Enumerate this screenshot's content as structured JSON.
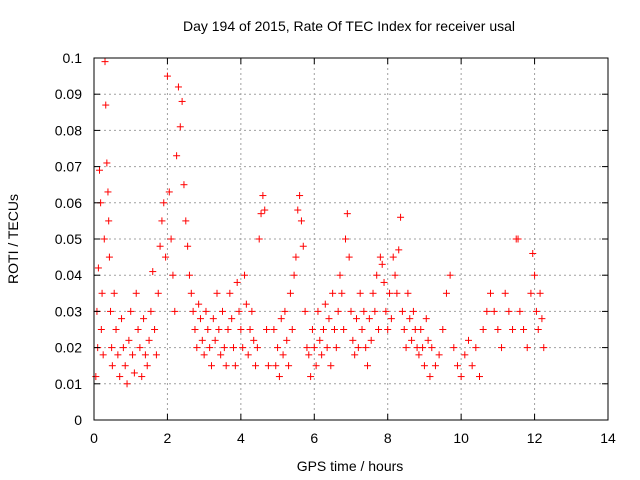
{
  "chart_data": {
    "type": "scatter",
    "title": "Day 194 of 2015, Rate Of TEC Index for receiver usal",
    "xlabel": "GPS time / hours",
    "ylabel": "ROTI / TECUs",
    "xlim": [
      0,
      14
    ],
    "ylim": [
      0,
      0.1
    ],
    "xticks": [
      "0",
      "2",
      "4",
      "6",
      "8",
      "10",
      "12",
      "14"
    ],
    "yticks": [
      "0",
      "0.01",
      "0.02",
      "0.03",
      "0.04",
      "0.05",
      "0.06",
      "0.07",
      "0.08",
      "0.09",
      "0.1"
    ],
    "grid": true,
    "marker": "+",
    "color": "#ff0000",
    "series": [
      {
        "x": [
          0.05,
          0.08,
          0.1,
          0.12,
          0.15,
          0.18,
          0.2,
          0.22,
          0.25,
          0.28,
          0.3,
          0.32,
          0.35,
          0.38,
          0.4,
          0.42,
          0.45,
          0.48,
          0.5,
          0.55,
          0.6,
          0.65,
          0.7,
          0.75,
          0.8,
          0.85,
          0.9,
          0.95,
          1.0,
          1.05,
          1.1,
          1.15,
          1.2,
          1.25,
          1.3,
          1.35,
          1.4,
          1.45,
          1.5,
          1.55,
          1.6,
          1.65,
          1.7,
          1.75,
          1.8,
          1.85,
          1.9,
          1.95,
          2.0,
          2.05,
          2.1,
          2.15,
          2.2,
          2.25,
          2.3,
          2.35,
          2.4,
          2.45,
          2.5,
          2.55,
          2.6,
          2.65,
          2.7,
          2.75,
          2.8,
          2.85,
          2.9,
          2.95,
          3.0,
          3.05,
          3.1,
          3.15,
          3.2,
          3.25,
          3.3,
          3.35,
          3.4,
          3.45,
          3.5,
          3.55,
          3.6,
          3.65,
          3.7,
          3.75,
          3.8,
          3.85,
          3.9,
          3.95,
          4.0,
          4.05,
          4.1,
          4.15,
          4.2,
          4.25,
          4.3,
          4.35,
          4.4,
          4.45,
          4.5,
          4.55,
          4.6,
          4.65,
          4.7,
          4.75
        ],
        "y": [
          0.012,
          0.03,
          0.02,
          0.042,
          0.069,
          0.06,
          0.025,
          0.035,
          0.018,
          0.05,
          0.099,
          0.087,
          0.071,
          0.063,
          0.055,
          0.045,
          0.03,
          0.02,
          0.015,
          0.035,
          0.025,
          0.018,
          0.012,
          0.028,
          0.02,
          0.015,
          0.01,
          0.022,
          0.03,
          0.018,
          0.013,
          0.035,
          0.025,
          0.02,
          0.012,
          0.028,
          0.018,
          0.015,
          0.022,
          0.03,
          0.041,
          0.025,
          0.018,
          0.035,
          0.048,
          0.055,
          0.06,
          0.045,
          0.095,
          0.063,
          0.05,
          0.04,
          0.03,
          0.073,
          0.092,
          0.081,
          0.088,
          0.065,
          0.055,
          0.048,
          0.04,
          0.035,
          0.03,
          0.025,
          0.02,
          0.032,
          0.028,
          0.022,
          0.018,
          0.03,
          0.025,
          0.02,
          0.015,
          0.028,
          0.022,
          0.035,
          0.025,
          0.018,
          0.03,
          0.02,
          0.015,
          0.025,
          0.035,
          0.028,
          0.02,
          0.015,
          0.038,
          0.03,
          0.025,
          0.02,
          0.04,
          0.032,
          0.018,
          0.025,
          0.03,
          0.022,
          0.015,
          0.02,
          0.05,
          0.057,
          0.062,
          0.058,
          0.025,
          0.015
        ]
      },
      {
        "x": [
          4.9,
          4.95,
          5.0,
          5.05,
          5.1,
          5.15,
          5.2,
          5.25,
          5.3,
          5.35,
          5.4,
          5.45,
          5.5,
          5.55,
          5.6,
          5.65,
          5.7,
          5.75,
          5.8,
          5.85,
          5.9,
          5.95,
          6.0,
          6.05,
          6.1,
          6.15,
          6.2,
          6.25,
          6.3,
          6.35,
          6.4,
          6.45,
          6.5,
          6.55,
          6.6,
          6.65,
          6.7,
          6.75,
          6.8,
          6.85,
          6.9,
          6.95,
          7.0,
          7.05,
          7.1,
          7.15,
          7.2,
          7.25,
          7.3,
          7.35,
          7.4,
          7.45,
          7.5,
          7.55,
          7.6,
          7.65,
          7.7,
          7.75,
          7.8,
          7.85,
          7.9,
          7.95,
          8.0,
          8.05,
          8.1,
          8.15,
          8.2,
          8.25,
          8.3,
          8.35,
          8.4,
          8.45,
          8.5,
          8.55,
          8.6,
          8.65,
          8.7,
          8.75,
          8.8,
          8.85,
          8.9,
          8.95,
          9.0,
          9.05,
          9.1,
          9.15,
          9.2,
          9.3,
          9.4,
          9.5,
          9.6,
          9.7,
          9.8,
          9.9,
          10.0,
          10.1,
          10.2,
          10.3,
          10.4,
          10.5,
          10.6,
          10.7,
          10.8,
          10.9,
          11.0,
          11.1,
          11.2,
          11.3,
          11.4,
          11.5,
          11.55,
          11.6,
          11.7,
          11.8,
          11.9,
          11.95,
          12.0,
          12.05,
          12.1,
          12.15,
          12.2,
          12.25
        ],
        "y": [
          0.025,
          0.015,
          0.02,
          0.012,
          0.028,
          0.018,
          0.03,
          0.022,
          0.015,
          0.035,
          0.025,
          0.04,
          0.045,
          0.058,
          0.062,
          0.055,
          0.048,
          0.03,
          0.02,
          0.018,
          0.012,
          0.025,
          0.02,
          0.015,
          0.03,
          0.022,
          0.018,
          0.025,
          0.032,
          0.02,
          0.028,
          0.015,
          0.035,
          0.025,
          0.02,
          0.03,
          0.04,
          0.035,
          0.025,
          0.05,
          0.057,
          0.045,
          0.03,
          0.022,
          0.018,
          0.028,
          0.02,
          0.035,
          0.025,
          0.03,
          0.02,
          0.015,
          0.028,
          0.022,
          0.035,
          0.03,
          0.04,
          0.025,
          0.045,
          0.043,
          0.038,
          0.03,
          0.025,
          0.035,
          0.028,
          0.045,
          0.04,
          0.035,
          0.047,
          0.056,
          0.03,
          0.025,
          0.02,
          0.035,
          0.028,
          0.022,
          0.03,
          0.025,
          0.02,
          0.018,
          0.025,
          0.02,
          0.015,
          0.028,
          0.022,
          0.012,
          0.02,
          0.015,
          0.018,
          0.025,
          0.035,
          0.04,
          0.02,
          0.015,
          0.012,
          0.018,
          0.022,
          0.015,
          0.02,
          0.012,
          0.025,
          0.03,
          0.035,
          0.03,
          0.025,
          0.02,
          0.035,
          0.03,
          0.025,
          0.05,
          0.05,
          0.03,
          0.025,
          0.02,
          0.035,
          0.046,
          0.04,
          0.03,
          0.025,
          0.035,
          0.028,
          0.02
        ]
      }
    ]
  }
}
